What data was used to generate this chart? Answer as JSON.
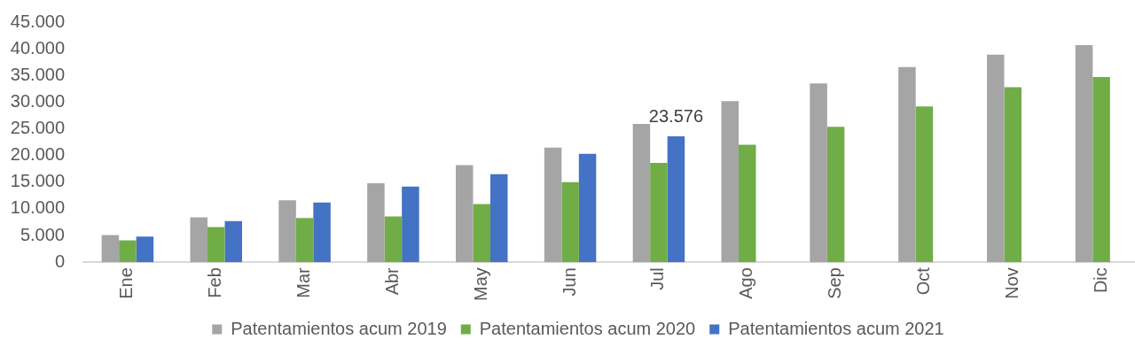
{
  "chart_data": {
    "type": "bar",
    "categories": [
      "Ene",
      "Feb",
      "Mar",
      "Abr",
      "May",
      "Jun",
      "Jul",
      "Ago",
      "Sep",
      "Oct",
      "Nov",
      "Dic"
    ],
    "series": [
      {
        "name": "Patentamientos acum 2019",
        "color": "#a5a5a5",
        "values": [
          5100,
          8400,
          11600,
          14800,
          18200,
          21500,
          25900,
          30200,
          33500,
          36600,
          38900,
          40700
        ]
      },
      {
        "name": "Patentamientos acum 2020",
        "color": "#70ad47",
        "values": [
          4100,
          6600,
          8300,
          8600,
          10900,
          15000,
          18600,
          22000,
          25400,
          29200,
          32800,
          34700
        ]
      },
      {
        "name": "Patentamientos acum 2021",
        "color": "#4472c4",
        "values": [
          4800,
          7700,
          11200,
          14200,
          16500,
          20300,
          23576,
          null,
          null,
          null,
          null,
          null
        ],
        "value_labels": [
          null,
          null,
          null,
          null,
          null,
          null,
          "23.576",
          null,
          null,
          null,
          null,
          null
        ]
      }
    ],
    "ylim": [
      0,
      45000
    ],
    "yticks": [
      0,
      {
        "value": 5000,
        "label": "5.000"
      },
      {
        "value": 10000,
        "label": "10.000"
      },
      {
        "value": 15000,
        "label": "15.000"
      },
      {
        "value": 20000,
        "label": "20.000"
      },
      {
        "value": 25000,
        "label": "25.000"
      },
      {
        "value": 30000,
        "label": "30.000"
      },
      {
        "value": 35000,
        "label": "35.000"
      },
      {
        "value": 40000,
        "label": "40.000"
      },
      {
        "value": 45000,
        "label": "45.000"
      }
    ],
    "grid": false,
    "legend": "bottom"
  }
}
